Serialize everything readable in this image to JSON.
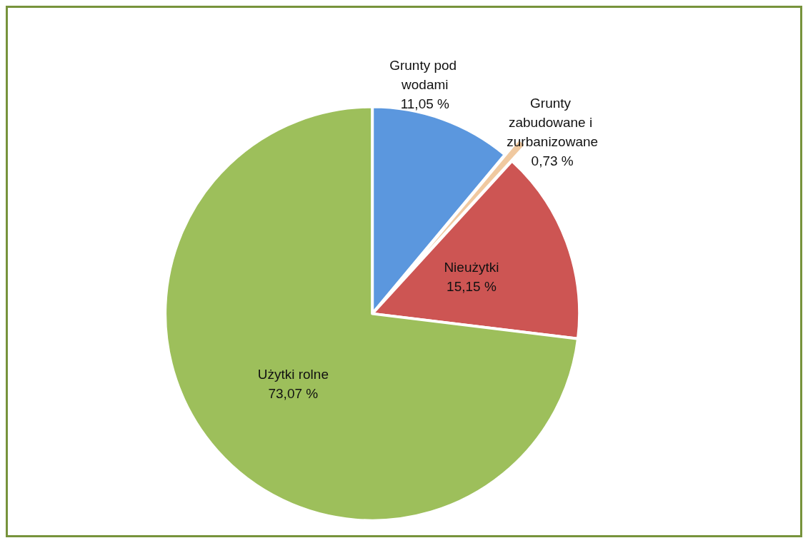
{
  "chart_data": {
    "type": "pie",
    "categories": [
      "Grunty pod wodami",
      "Grunty zabudowane i zurbanizowane",
      "Nieużytki",
      "Użytki rolne"
    ],
    "values": [
      11.05,
      0.73,
      15.15,
      73.07
    ],
    "value_labels": [
      "11,05 %",
      "0,73 %",
      "15,15 %",
      "73,07 %"
    ],
    "colors": [
      "#5b97de",
      "#f0c9a0",
      "#cd5553",
      "#9dbf5b"
    ],
    "legend": false
  }
}
